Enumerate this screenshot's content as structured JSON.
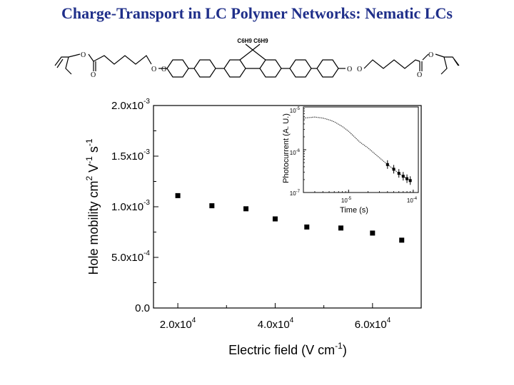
{
  "slide": {
    "title": "Charge-Transport in LC Polymer Networks: Nematic LCs"
  },
  "molecule": {
    "substituent": "C6H9 C6H9",
    "atoms": [
      "O",
      "O",
      "O",
      "O",
      "O",
      "O",
      "O",
      "O"
    ]
  },
  "chart_data": [
    {
      "type": "scatter",
      "title": "",
      "xlabel": "Electric field (V cm-1)",
      "ylabel": "Hole mobility cm2 V-1 s-1",
      "xlim": [
        15000,
        70000
      ],
      "ylim": [
        0,
        0.002
      ],
      "x_ticks": [
        "2.0x10^4",
        "4.0x10^4",
        "6.0x10^4"
      ],
      "y_ticks": [
        "0.0",
        "5.0x10^-4",
        "1.0x10^-3",
        "1.5x10^-3",
        "2.0x10^-3"
      ],
      "grid": false,
      "legend": "none",
      "marker": "square",
      "series": [
        {
          "x": [
            20000,
            27000,
            34000,
            40000,
            46500,
            53500,
            60000,
            66000
          ],
          "y": [
            0.00111,
            0.00101,
            0.00098,
            0.00088,
            0.0008,
            0.00079,
            0.00074,
            0.00067
          ]
        }
      ]
    },
    {
      "type": "line",
      "title": "",
      "xlabel": "Time (s)",
      "ylabel": "Photocurrent (A. U.)",
      "x_scale": "log",
      "y_scale": "log",
      "xlim": [
        2e-06,
        0.00012
      ],
      "ylim": [
        1e-07,
        1e-05
      ],
      "x_ticks": [
        "10^-5",
        "10^-4"
      ],
      "y_ticks": [
        "10^-7",
        "10^-6",
        "10^-5"
      ],
      "grid": false,
      "legend": "none",
      "series": [
        {
          "x": [
            2e-06,
            3e-06,
            4e-06,
            5e-06,
            6e-06,
            8e-06,
            1e-05,
            1.5e-05,
            2e-05,
            3e-05,
            4e-05,
            5e-05,
            6e-05,
            7e-05,
            8e-05,
            9e-05
          ],
          "y": [
            5.5e-06,
            5.8e-06,
            5.5e-06,
            5e-06,
            4.5e-06,
            3.5e-06,
            2.7e-06,
            1.5e-06,
            1.1e-06,
            6.5e-07,
            4.5e-07,
            3.5e-07,
            2.8e-07,
            2.4e-07,
            2.1e-07,
            1.9e-07
          ]
        }
      ]
    }
  ]
}
